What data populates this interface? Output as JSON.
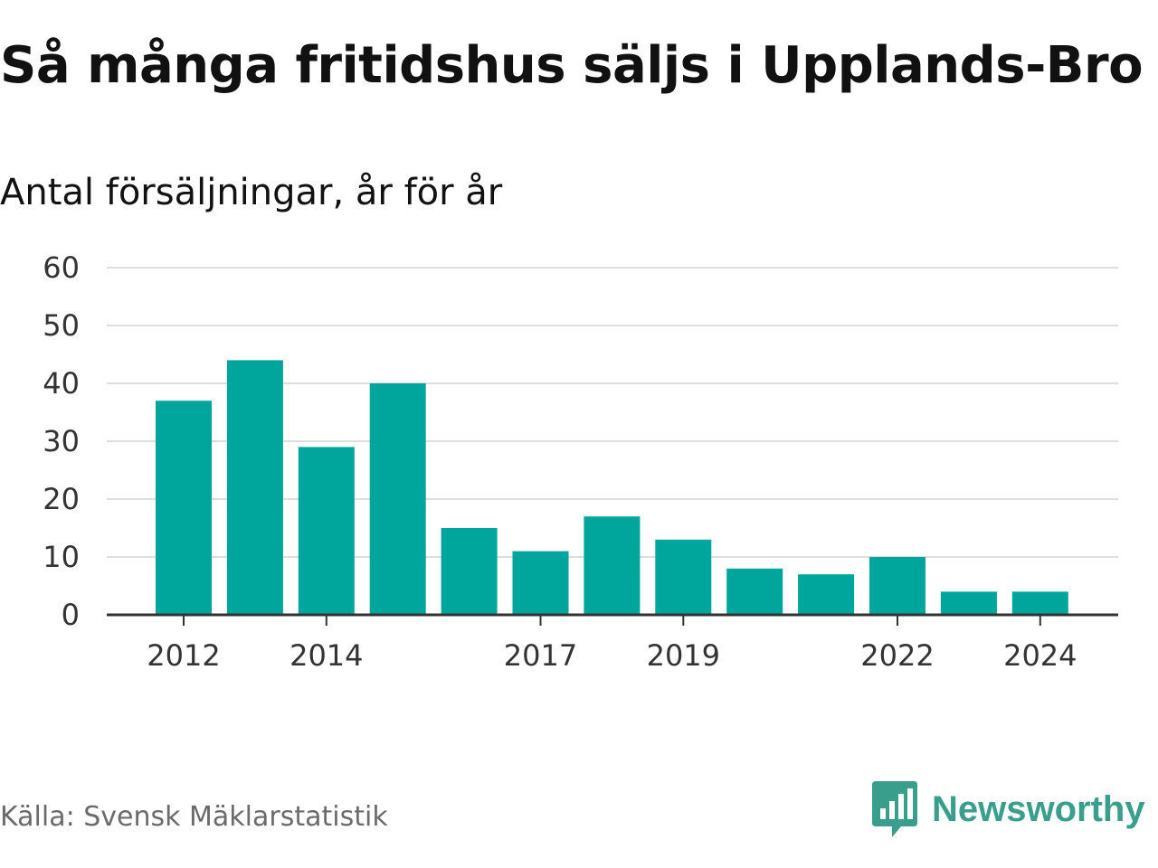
{
  "title": "Så många fritidshus säljs i Upplands-Bro",
  "subtitle": "Antal försäljningar, år för år",
  "source": "Källa: Svensk Mäklarstatistik",
  "logo_text": "Newsworthy",
  "colors": {
    "bar": "#00a69b",
    "grid": "#dddddd",
    "axis": "#333333",
    "logo": "#3a9e8c"
  },
  "chart_data": {
    "type": "bar",
    "title": "Så många fritidshus säljs i Upplands-Bro",
    "subtitle": "Antal försäljningar, år för år",
    "xlabel": "",
    "ylabel": "",
    "categories": [
      "2012",
      "2013",
      "2014",
      "2015",
      "2016",
      "2017",
      "2018",
      "2019",
      "2020",
      "2021",
      "2022",
      "2023",
      "2024"
    ],
    "values": [
      37,
      44,
      29,
      40,
      15,
      11,
      17,
      13,
      8,
      7,
      10,
      4,
      4
    ],
    "x_tick_labels": [
      "2012",
      "2014",
      "2017",
      "2019",
      "2022",
      "2024"
    ],
    "y_ticks": [
      0,
      10,
      20,
      30,
      40,
      50,
      60
    ],
    "ylim": [
      0,
      60
    ],
    "grid": true,
    "legend": "none"
  }
}
